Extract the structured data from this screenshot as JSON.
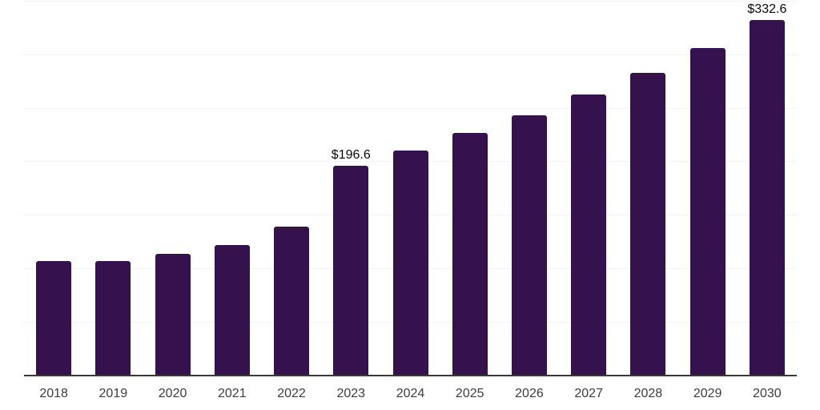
{
  "chart_data": {
    "type": "bar",
    "title": "",
    "xlabel": "",
    "ylabel": "",
    "categories": [
      "2018",
      "2019",
      "2020",
      "2021",
      "2022",
      "2023",
      "2024",
      "2025",
      "2026",
      "2027",
      "2028",
      "2029",
      "2030"
    ],
    "values": [
      108.0,
      108.0,
      114.5,
      122.5,
      139.8,
      196.6,
      210.8,
      227.0,
      243.5,
      263.4,
      283.6,
      306.6,
      332.6
    ],
    "data_labels": [
      {
        "category": "2023",
        "text": "$196.6"
      },
      {
        "category": "2030",
        "text": "$332.6"
      }
    ],
    "value_prefix": "$",
    "ylim": [
      0,
      350
    ],
    "gridline_values": [
      50,
      100,
      150,
      200,
      250,
      300,
      350
    ],
    "grid": true,
    "legend": false
  },
  "style": {
    "bar_color": "#35124e",
    "gridline_color": "#f3f3f3",
    "axis_line_color": "#383838",
    "tick_label_color": "#3d3d3d",
    "data_label_color": "#0a0a0a",
    "background_color": "#ffffff"
  }
}
